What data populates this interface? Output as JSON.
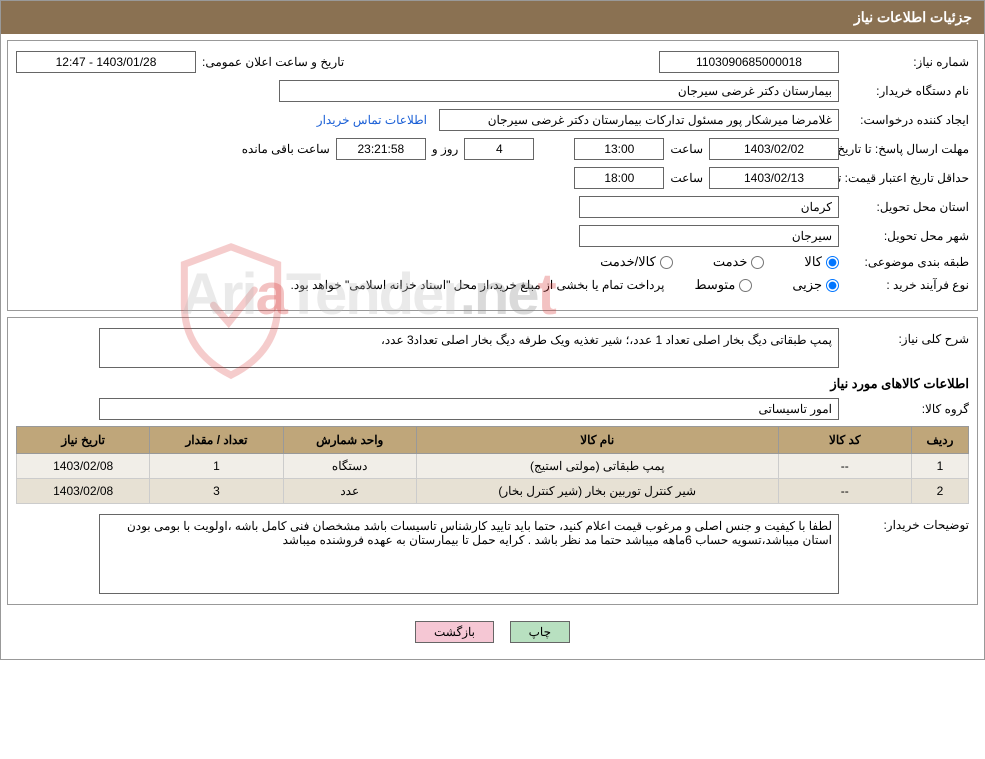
{
  "header": {
    "title": "جزئیات اطلاعات نیاز"
  },
  "form": {
    "need_number_label": "شماره نیاز:",
    "need_number": "1103090685000018",
    "announce_label": "تاریخ و ساعت اعلان عمومی:",
    "announce_value": "1403/01/28 - 12:47",
    "buyer_org_label": "نام دستگاه خریدار:",
    "buyer_org": "بیمارستان دکتر غرضی سیرجان",
    "requester_label": "ايجاد کننده درخواست:",
    "requester": "غلامرضا میرشکار پور مسئول تدارکات بیمارستان دکتر غرضی سیرجان",
    "contact_link": "اطلاعات تماس خریدار",
    "deadline_label": "مهلت ارسال پاسخ: تا تاریخ:",
    "deadline_date": "1403/02/02",
    "time_label": "ساعت",
    "deadline_time": "13:00",
    "days_value": "4",
    "days_and_label": "روز و",
    "countdown": "23:21:58",
    "remaining_label": "ساعت باقی مانده",
    "price_validity_label": "حداقل تاريخ اعتبار قيمت: تا تاريخ:",
    "price_validity_date": "1403/02/13",
    "price_validity_time": "18:00",
    "province_label": "استان محل تحویل:",
    "province": "کرمان",
    "city_label": "شهر محل تحویل:",
    "city": "سیرجان",
    "category_label": "طبقه بندی موضوعی:",
    "cat_goods": "کالا",
    "cat_service": "خدمت",
    "cat_goods_service": "کالا/خدمت",
    "purchase_type_label": "نوع فرآیند خرید :",
    "pt_partial": "جزیی",
    "pt_medium": "متوسط",
    "purchase_note": "پرداخت تمام یا بخشی از مبلغ خرید،از محل \"اسناد خزانه اسلامی\" خواهد بود.",
    "need_desc_label": "شرح کلی نیاز:",
    "need_desc": "پمپ طبقاتی دیگ بخار اصلی تعداد 1 عدد،؛ شیر تغذیه ویک طرفه دیگ بخار اصلی تعداد3 عدد،",
    "goods_info_title": "اطلاعات کالاهای مورد نیاز",
    "goods_group_label": "گروه کالا:",
    "goods_group": "امور تاسیساتی",
    "buyer_notes_label": "توضیحات خریدار:",
    "buyer_notes": "لطفا با کیفیت و جنس اصلی و مرغوب قیمت اعلام کنید، حتما باید تایید کارشناس تاسیسات باشد مشخصان فنی کامل باشه ،اولویت با بومی بودن استان میباشد،تسویه حساب 6ماهه میباشد حتما مد نظر باشد . کرایه حمل تا بیمارستان به عهده فروشنده میباشد"
  },
  "table": {
    "columns": [
      "ردیف",
      "کد کالا",
      "نام کالا",
      "واحد شمارش",
      "تعداد / مقدار",
      "تاریخ نیاز"
    ],
    "rows": [
      [
        "1",
        "--",
        "پمپ طبقاتی (مولتی استیج)",
        "دستگاه",
        "1",
        "1403/02/08"
      ],
      [
        "2",
        "--",
        "شیر کنترل توربین بخار (شیر کنترل بخار)",
        "عدد",
        "3",
        "1403/02/08"
      ]
    ],
    "col_widths": [
      "6%",
      "14%",
      "38%",
      "14%",
      "14%",
      "14%"
    ],
    "header_bg": "#bfa67a",
    "row_bg": "#f1eee8",
    "row_alt_bg": "#e7e1d4"
  },
  "buttons": {
    "print": "چاپ",
    "back": "بازگشت"
  },
  "colors": {
    "header_bg": "#8a7152",
    "header_fg": "#ffffff",
    "border": "#999999",
    "link": "#1a5fd6",
    "btn_green": "#b8e0c0",
    "btn_pink": "#f5c7d4"
  },
  "watermark": {
    "text_left": "AriaTender",
    "text_right": ".ne",
    "t": "t",
    "red_index": 4
  }
}
